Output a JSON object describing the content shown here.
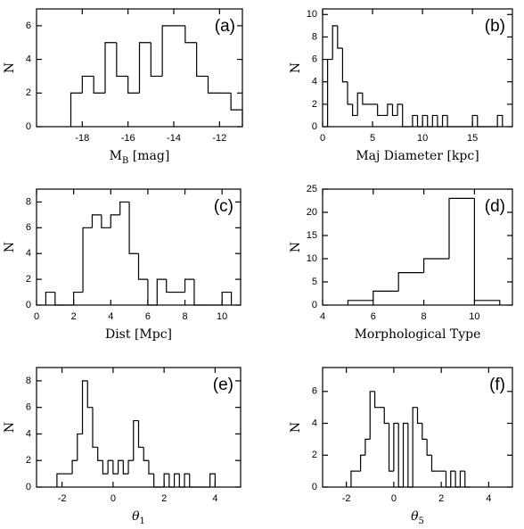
{
  "chart_data": [
    {
      "type": "histogram",
      "label": "(a)",
      "ylabel": "N",
      "xlabel": [
        {
          "text": "M"
        },
        {
          "text": "B",
          "sub": true
        },
        {
          "text": " [mag]"
        }
      ],
      "color": "#000000",
      "bins": [
        -18.5,
        -18,
        -17.5,
        -17,
        -16.5,
        -16,
        -15.5,
        -15,
        -14.5,
        -14,
        -13.5,
        -13,
        -12.5,
        -12,
        -11.5,
        -11
      ],
      "counts": [
        2,
        3,
        2,
        5,
        3,
        2,
        5,
        3,
        6,
        6,
        5,
        3,
        2,
        2,
        1
      ],
      "xlim": [
        -20,
        -11
      ],
      "xticks": [
        -18,
        -16,
        -14,
        -12
      ],
      "ylim": [
        0,
        7
      ],
      "yticks": [
        0,
        2,
        4,
        6
      ]
    },
    {
      "type": "histogram",
      "label": "(b)",
      "ylabel": "N",
      "xlabel": [
        {
          "text": "Maj Diameter [kpc]"
        }
      ],
      "color": "#000000",
      "bins": [
        0.5,
        1,
        1.5,
        2,
        2.5,
        3,
        3.5,
        4,
        4.5,
        5,
        5.5,
        6,
        6.5,
        7,
        7.5,
        8,
        8.5,
        9,
        9.5,
        10,
        10.5,
        11,
        11.5,
        12,
        12.5,
        13,
        13.5,
        14,
        14.5,
        15,
        15.5,
        16,
        16.5,
        17,
        17.5,
        18
      ],
      "counts": [
        6,
        9,
        7,
        4,
        2,
        1,
        3,
        2,
        2,
        2,
        1,
        1,
        2,
        1,
        2,
        0,
        0,
        1,
        0,
        1,
        0,
        1,
        0,
        1,
        0,
        0,
        0,
        0,
        0,
        1,
        0,
        0,
        0,
        0,
        1
      ],
      "xlim": [
        0,
        19
      ],
      "xticks": [
        0,
        5,
        10,
        15
      ],
      "ylim": [
        0,
        10.5
      ],
      "yticks": [
        0,
        2,
        4,
        6,
        8,
        10
      ]
    },
    {
      "type": "histogram",
      "label": "(c)",
      "ylabel": "N",
      "xlabel": [
        {
          "text": "Dist [Mpc]"
        }
      ],
      "color": "#000000",
      "bins": [
        0.5,
        1,
        1.5,
        2,
        2.5,
        3,
        3.5,
        4,
        4.5,
        5,
        5.5,
        6,
        6.5,
        7,
        7.5,
        8,
        8.5,
        9,
        9.5,
        10,
        10.5
      ],
      "counts": [
        1,
        0,
        0,
        1,
        6,
        7,
        6,
        7,
        8,
        4,
        2,
        0,
        2,
        1,
        1,
        2,
        0,
        0,
        0,
        1
      ],
      "xlim": [
        0,
        11
      ],
      "xticks": [
        0,
        2,
        4,
        6,
        8,
        10
      ],
      "ylim": [
        0,
        9
      ],
      "yticks": [
        0,
        2,
        4,
        6,
        8
      ]
    },
    {
      "type": "histogram",
      "label": "(d)",
      "ylabel": "N",
      "xlabel": [
        {
          "text": "Morphological Type"
        }
      ],
      "color": "#000000",
      "bins": [
        5,
        6,
        7,
        8,
        9,
        10,
        11
      ],
      "counts": [
        1,
        3,
        7,
        10,
        23,
        1
      ],
      "xlim": [
        4,
        11.5
      ],
      "xticks": [
        4,
        6,
        8,
        10
      ],
      "ylim": [
        0,
        25
      ],
      "yticks": [
        0,
        5,
        10,
        15,
        20,
        25
      ]
    },
    {
      "type": "histogram",
      "label": "(e)",
      "ylabel": "N",
      "xlabel": [
        {
          "text": "θ",
          "italic": true
        },
        {
          "text": "1",
          "sub": true
        }
      ],
      "color": "#000000",
      "bins": [
        -2.2,
        -2,
        -1.8,
        -1.6,
        -1.4,
        -1.2,
        -1,
        -0.8,
        -0.6,
        -0.4,
        -0.2,
        0,
        0.2,
        0.4,
        0.6,
        0.8,
        1,
        1.2,
        1.4,
        1.6,
        1.8,
        2,
        2.2,
        2.4,
        2.6,
        2.8,
        3,
        3.2,
        3.4,
        3.6,
        3.8,
        4
      ],
      "counts": [
        1,
        1,
        1,
        2,
        4,
        8,
        6,
        3,
        2,
        1,
        2,
        1,
        2,
        1,
        2,
        5,
        3,
        2,
        1,
        0,
        0,
        1,
        0,
        1,
        0,
        1,
        0,
        0,
        0,
        0,
        1
      ],
      "xlim": [
        -3,
        5
      ],
      "xticks": [
        -2,
        0,
        2,
        4
      ],
      "ylim": [
        0,
        9
      ],
      "yticks": [
        0,
        2,
        4,
        6,
        8
      ]
    },
    {
      "type": "histogram",
      "label": "(f)",
      "ylabel": "N",
      "xlabel": [
        {
          "text": "θ",
          "italic": true
        },
        {
          "text": "5",
          "sub": true
        }
      ],
      "color": "#000000",
      "bins": [
        -1.8,
        -1.6,
        -1.4,
        -1.2,
        -1,
        -0.8,
        -0.6,
        -0.4,
        -0.2,
        0,
        0.2,
        0.4,
        0.6,
        0.8,
        1,
        1.2,
        1.4,
        1.6,
        1.8,
        2,
        2.2,
        2.4,
        2.6,
        2.8,
        3,
        3.2
      ],
      "counts": [
        1,
        1,
        2,
        3,
        6,
        5,
        5,
        4,
        1,
        4,
        0,
        4,
        0,
        5,
        4,
        3,
        2,
        1,
        1,
        1,
        0,
        1,
        0,
        1,
        0
      ],
      "xlim": [
        -3,
        5
      ],
      "xticks": [
        -2,
        0,
        2,
        4
      ],
      "ylim": [
        0,
        7.5
      ],
      "yticks": [
        0,
        2,
        4,
        6
      ]
    }
  ]
}
